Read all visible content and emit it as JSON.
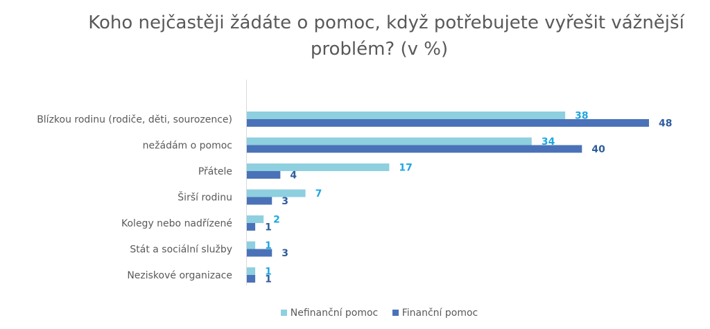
{
  "chart_data": {
    "type": "bar",
    "orientation": "horizontal",
    "title_lines": [
      "Koho nejčastěji žádáte o pomoc, když potřebujete vyřešit vážnější",
      "problém? (v %)"
    ],
    "categories": [
      "Blízkou rodinu (rodiče, děti, sourozence)",
      "nežádám o pomoc",
      "Přátele",
      "Širší rodinu",
      "Kolegy nebo nadřízené",
      "Stát a sociální služby",
      "Neziskové organizace"
    ],
    "series": [
      {
        "name": "Nefinanční pomoc",
        "values": [
          38,
          34,
          17,
          7,
          2,
          1,
          1
        ],
        "color": "#8ecfe0",
        "label_color": "#1ea7e1"
      },
      {
        "name": "Finanční pomoc",
        "values": [
          48,
          40,
          4,
          3,
          1,
          3,
          1
        ],
        "color": "#4a72b8",
        "label_color": "#2f5d9c"
      }
    ],
    "xlim": [
      0,
      50
    ],
    "grid": false,
    "legend_position": "bottom"
  }
}
